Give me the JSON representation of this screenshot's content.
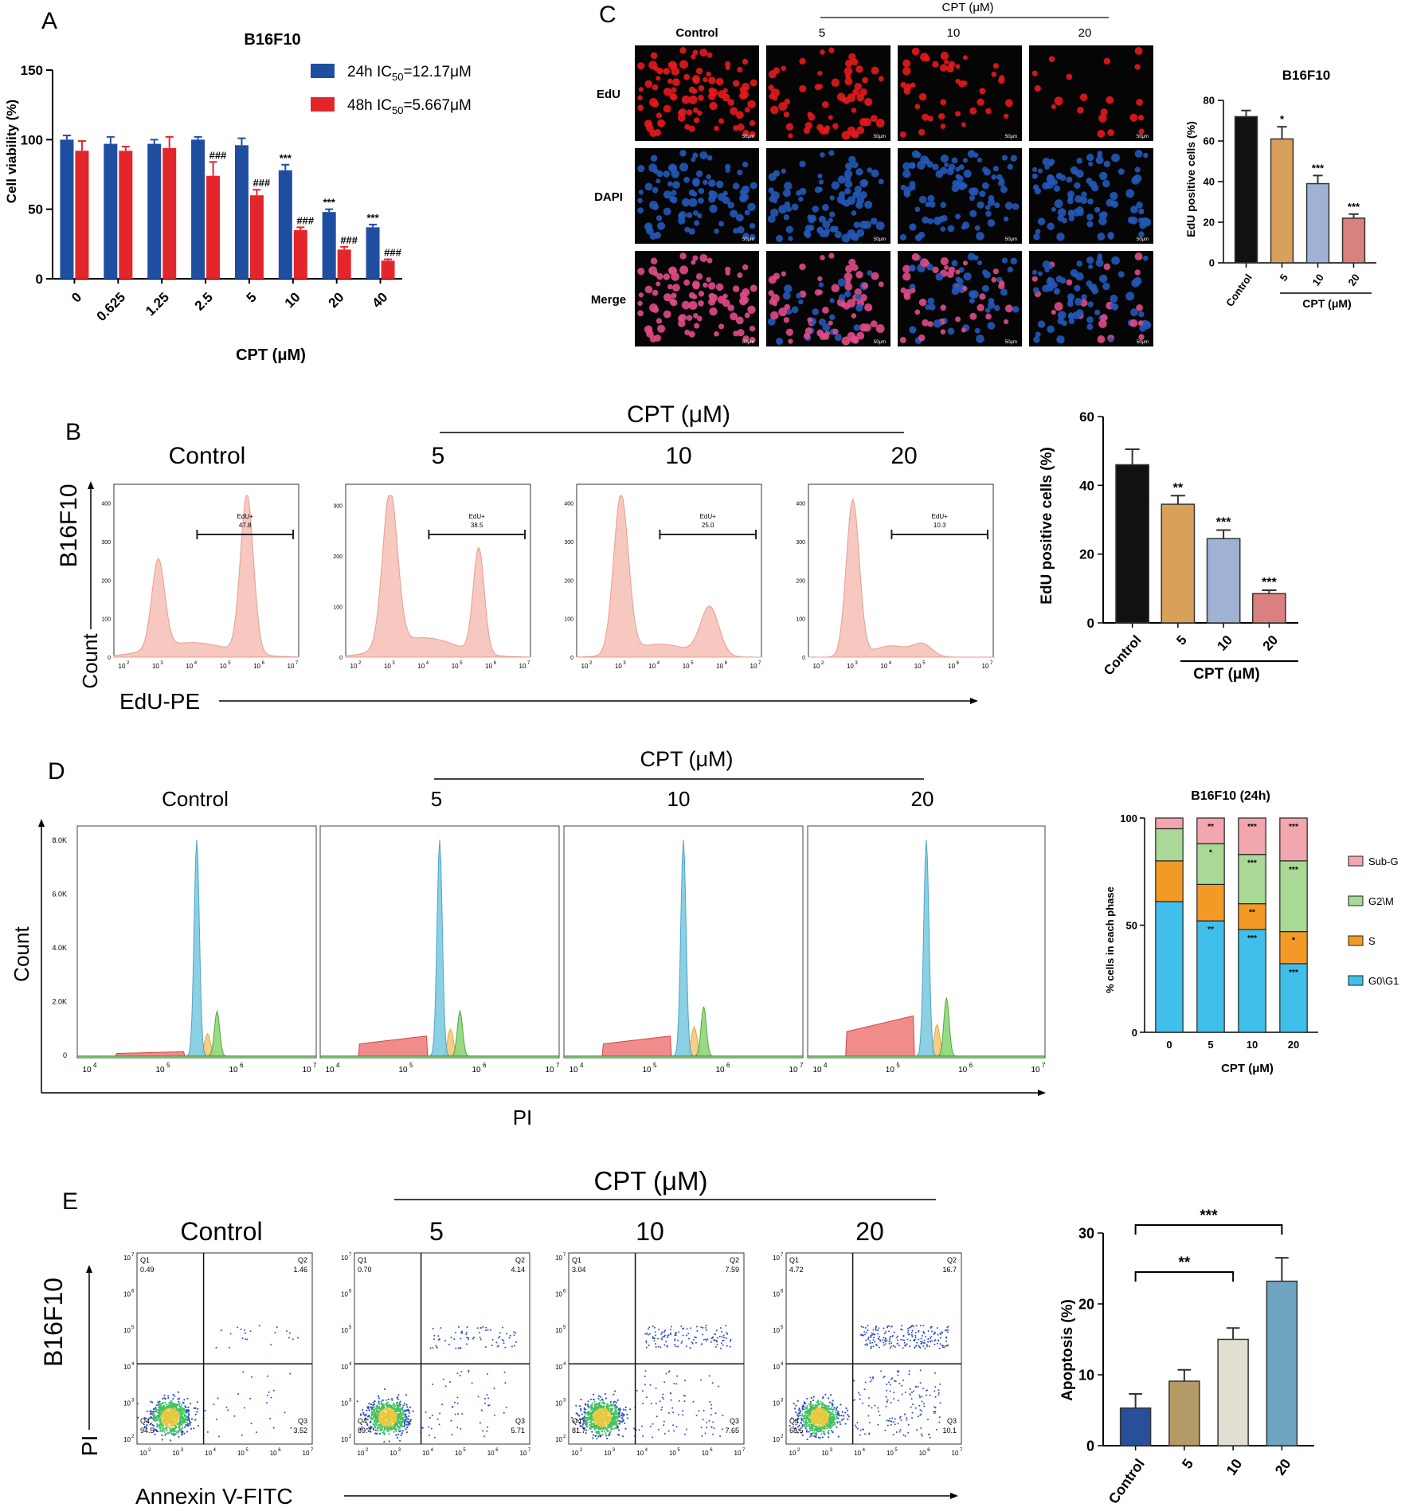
{
  "panels": {
    "A": {
      "letter": "A",
      "chart_data": {
        "type": "bar",
        "title": "B16F10",
        "xlabel": "CPT  (μM)",
        "ylabel": "Cell viability  (%)",
        "ylim": [
          0,
          150
        ],
        "yticks": [
          0,
          50,
          100,
          150
        ],
        "categories": [
          "0",
          "0.625",
          "1.25",
          "2.5",
          "5",
          "10",
          "20",
          "40"
        ],
        "series": [
          {
            "name": "24h IC50=12.17μM",
            "name_prefix": "24h IC",
            "name_sub": "50",
            "name_suffix": "=12.17μM",
            "color": "#1f4ea1",
            "values": [
              100,
              97,
              97,
              100,
              96,
              78,
              48,
              37
            ],
            "errors": [
              3,
              5,
              3,
              2,
              5,
              4,
              2,
              2
            ],
            "labels": [
              "",
              "",
              "",
              "",
              "",
              "***",
              "***",
              "***"
            ]
          },
          {
            "name": "48h IC50=5.667μM",
            "name_prefix": "48h IC",
            "name_sub": "50",
            "name_suffix": "=5.667μM",
            "color": "#e3262b",
            "values": [
              92,
              92,
              94,
              74,
              60,
              35,
              21,
              13
            ],
            "errors": [
              7,
              3,
              8,
              10,
              4,
              2,
              2,
              1
            ],
            "labels": [
              "",
              "",
              "",
              "###",
              "###",
              "###",
              "###",
              "###"
            ]
          }
        ]
      }
    },
    "C": {
      "letter": "C",
      "header": "CPT (μM)",
      "columns": [
        "Control",
        "5",
        "10",
        "20"
      ],
      "rows": [
        "EdU",
        "DAPI",
        "Merge"
      ],
      "scale_label": "50μm",
      "chart_data": {
        "type": "bar",
        "title": "B16F10",
        "ylabel": "EdU positive cells  (%)",
        "xlabel": "CPT  (μM)",
        "ylim": [
          0,
          80
        ],
        "yticks": [
          0,
          20,
          40,
          60,
          80
        ],
        "categories": [
          "Control",
          "5",
          "10",
          "20"
        ],
        "values": [
          72,
          61,
          39,
          22
        ],
        "errors": [
          3,
          6,
          4,
          2
        ],
        "labels": [
          "",
          "*",
          "***",
          "***"
        ],
        "colors": [
          "#111111",
          "#d9a05b",
          "#9fb2d4",
          "#d98080"
        ]
      }
    },
    "B": {
      "letter": "B",
      "header": "CPT  (μM)",
      "row_label": "B16F10",
      "yaxis": "Count",
      "xaxis": "EdU-PE",
      "gate_name": "EdU+",
      "plots": [
        {
          "title": "Control",
          "gate": "47.8",
          "yticks": [
            "0",
            "100",
            "200",
            "300",
            "400"
          ]
        },
        {
          "title": "5",
          "gate": "38.5",
          "yticks": [
            "0",
            "100",
            "200",
            "300"
          ]
        },
        {
          "title": "10",
          "gate": "25.0",
          "yticks": [
            "0",
            "100",
            "200",
            "300",
            "400"
          ]
        },
        {
          "title": "20",
          "gate": "10.3",
          "yticks": [
            "0",
            "100",
            "200",
            "300",
            "400"
          ]
        }
      ],
      "xtick_exps": [
        "2",
        "3",
        "4",
        "5",
        "6",
        "7"
      ],
      "chart_data": {
        "type": "bar",
        "ylabel": "EdU positive cells  (%)",
        "xlabel": "CPT  (μM)",
        "ylim": [
          0,
          60
        ],
        "yticks": [
          0,
          20,
          40,
          60
        ],
        "categories": [
          "Control",
          "5",
          "10",
          "20"
        ],
        "values": [
          46,
          34.5,
          24.5,
          8.5
        ],
        "errors": [
          4.5,
          2.5,
          2.5,
          1
        ],
        "labels": [
          "",
          "**",
          "***",
          "***"
        ],
        "colors": [
          "#111111",
          "#d9a05b",
          "#9fb2d4",
          "#d98080"
        ]
      }
    },
    "D": {
      "letter": "D",
      "header": "CPT (μM)",
      "yaxis": "Count",
      "xaxis": "PI",
      "titles": [
        "Control",
        "5",
        "10",
        "20"
      ],
      "yticks": [
        "0",
        "2.0K",
        "4.0K",
        "6.0K",
        "8.0K"
      ],
      "xtick_exps": [
        "4",
        "5",
        "6",
        "7"
      ],
      "chart_data": {
        "type": "bar",
        "stacked": true,
        "title": "B16F10  (24h)",
        "ylabel": "% cells in each phase",
        "xlabel": "CPT  (μM)",
        "ylim": [
          0,
          100
        ],
        "yticks": [
          0,
          50,
          100
        ],
        "categories": [
          "0",
          "5",
          "10",
          "20"
        ],
        "series": [
          {
            "name": "G0\\G1",
            "color": "#3fbfea",
            "values": [
              61,
              52,
              48,
              32
            ],
            "labels": [
              "",
              "**",
              "***",
              "***"
            ]
          },
          {
            "name": "S",
            "color": "#f39a26",
            "values": [
              19,
              17,
              12,
              15
            ],
            "labels": [
              "",
              "",
              "**",
              "*"
            ]
          },
          {
            "name": "G2\\M",
            "color": "#a9d897",
            "values": [
              15,
              19,
              23,
              33
            ],
            "labels": [
              "",
              "*",
              "***",
              "***"
            ]
          },
          {
            "name": "Sub-G",
            "color": "#f2a6ae",
            "values": [
              5,
              12,
              17,
              20
            ],
            "labels": [
              "",
              "**",
              "***",
              "***"
            ]
          }
        ]
      }
    },
    "E": {
      "letter": "E",
      "header": "CPT  (μM)",
      "row_label": "B16F10",
      "yaxis": "PI",
      "xaxis": "Annexin V-FITC",
      "quadrant_names": [
        "Q1",
        "Q2",
        "Q3",
        "Q4"
      ],
      "plots": [
        {
          "title": "Control",
          "q1": "0.49",
          "q2": "1.46",
          "q3": "3.52",
          "q4": "94.5"
        },
        {
          "title": "5",
          "q1": "0.70",
          "q2": "4.14",
          "q3": "5.71",
          "q4": "89.4"
        },
        {
          "title": "10",
          "q1": "3.04",
          "q2": "7.59",
          "q3": "7.65",
          "q4": "81.7"
        },
        {
          "title": "20",
          "q1": "4.72",
          "q2": "16.7",
          "q3": "10.1",
          "q4": "68.5"
        }
      ],
      "tick_exps": [
        "2",
        "3",
        "4",
        "5",
        "6",
        "7"
      ],
      "chart_data": {
        "type": "bar",
        "ylabel": "Apoptosis  (%)",
        "ylim": [
          0,
          30
        ],
        "yticks": [
          0,
          10,
          20,
          30
        ],
        "categories": [
          "Control",
          "5",
          "10",
          "20"
        ],
        "values": [
          5.3,
          9.1,
          15.0,
          23.2
        ],
        "errors": [
          2.0,
          1.6,
          1.6,
          3.3
        ],
        "colors": [
          "#2a4f9a",
          "#b49a64",
          "#e2dfd2",
          "#6fa5c0"
        ],
        "brackets": [
          {
            "from": "Control",
            "to": "10",
            "label": "**"
          },
          {
            "from": "Control",
            "to": "20",
            "label": "***"
          }
        ]
      }
    }
  }
}
